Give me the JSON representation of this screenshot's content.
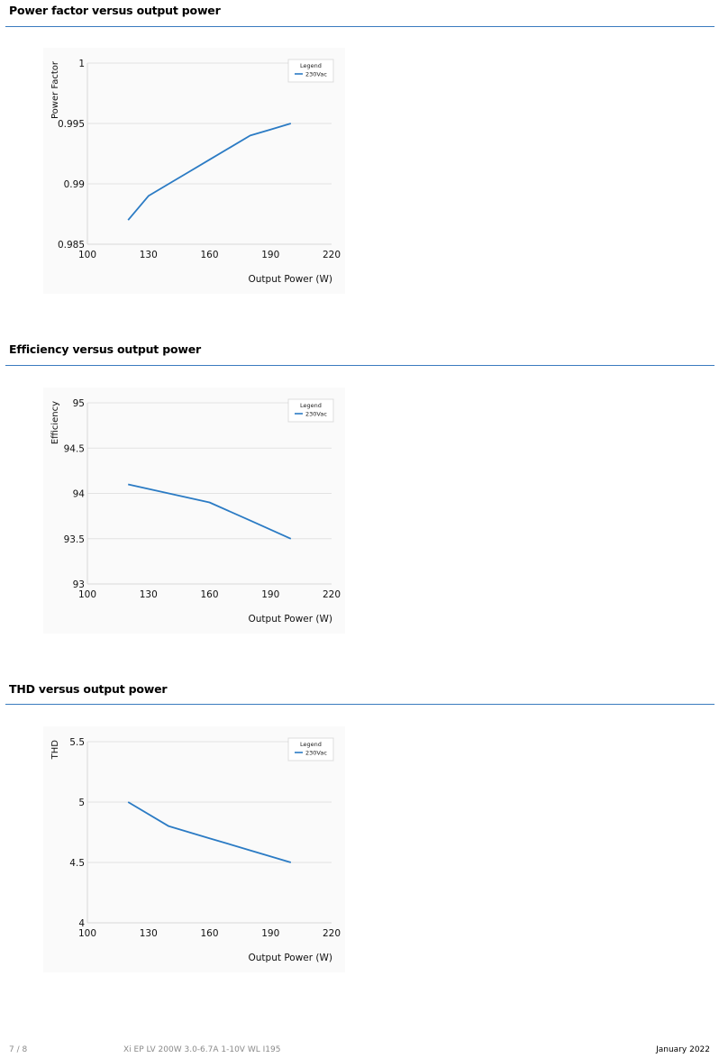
{
  "sections": [
    {
      "title": "Power factor versus output power"
    },
    {
      "title": "Efficiency versus output power"
    },
    {
      "title": "THD versus output power"
    }
  ],
  "chart_data": [
    {
      "type": "line",
      "xlabel": "Output Power (W)",
      "ylabel": "Power Factor",
      "xlim": [
        100,
        220
      ],
      "ylim": [
        0.985,
        1
      ],
      "x_ticks": [
        "100",
        "130",
        "160",
        "190",
        "220"
      ],
      "y_ticks": [
        "1",
        "0.995",
        "0.99",
        "0.985"
      ],
      "y_tick_values": [
        1,
        0.995,
        0.99,
        0.985
      ],
      "legend_title": "Legend",
      "legend_position": "top-right",
      "grid": true,
      "series": [
        {
          "name": "230Vac",
          "color": "#2b7bc4",
          "x": [
            120,
            130,
            140,
            150,
            160,
            170,
            180,
            190,
            200
          ],
          "y": [
            0.987,
            0.989,
            0.99,
            0.991,
            0.992,
            0.993,
            0.994,
            0.9945,
            0.995
          ]
        }
      ]
    },
    {
      "type": "line",
      "xlabel": "Output Power (W)",
      "ylabel": "Efficiency",
      "xlim": [
        100,
        220
      ],
      "ylim": [
        93,
        95
      ],
      "x_ticks": [
        "100",
        "130",
        "160",
        "190",
        "220"
      ],
      "y_ticks": [
        "95",
        "94.5",
        "94",
        "93.5",
        "93"
      ],
      "y_tick_values": [
        95,
        94.5,
        94,
        93.5,
        93
      ],
      "legend_title": "Legend",
      "legend_position": "top-right",
      "grid": true,
      "series": [
        {
          "name": "230Vac",
          "color": "#2b7bc4",
          "x": [
            120,
            140,
            160,
            180,
            200
          ],
          "y": [
            94.1,
            94.0,
            93.9,
            93.7,
            93.5
          ]
        }
      ]
    },
    {
      "type": "line",
      "xlabel": "Output Power (W)",
      "ylabel": "THD",
      "xlim": [
        100,
        220
      ],
      "ylim": [
        4,
        5.5
      ],
      "x_ticks": [
        "100",
        "130",
        "160",
        "190",
        "220"
      ],
      "y_ticks": [
        "5.5",
        "5",
        "4.5",
        "4"
      ],
      "y_tick_values": [
        5.5,
        5,
        4.5,
        4
      ],
      "legend_title": "Legend",
      "legend_position": "top-right",
      "grid": true,
      "series": [
        {
          "name": "230Vac",
          "color": "#2b7bc4",
          "x": [
            120,
            140,
            160,
            180,
            200
          ],
          "y": [
            5.0,
            4.8,
            4.7,
            4.6,
            4.5
          ]
        }
      ]
    }
  ],
  "footer": {
    "page": "7 / 8",
    "product": "Xi EP LV 200W 3.0-6.7A 1-10V WL I195",
    "date": "January 2022"
  }
}
